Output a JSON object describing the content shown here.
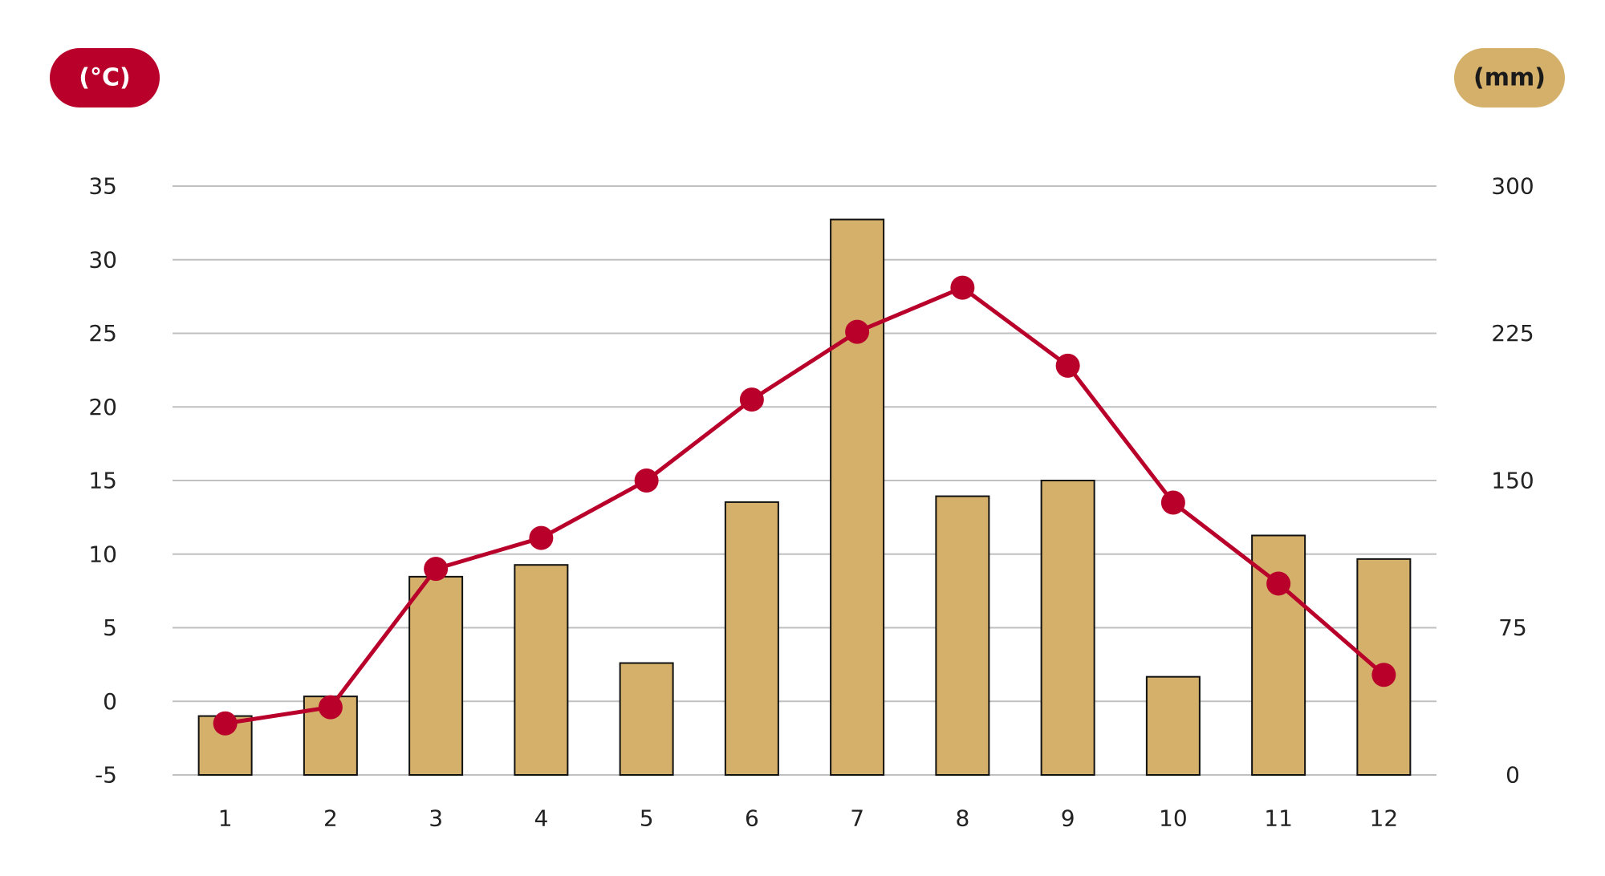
{
  "colors": {
    "temperature": "#B8002B",
    "precipitation": "#D4B06A",
    "bar_outline": "#111111",
    "grid": "#C0C0C0",
    "tick_text": "#222222",
    "background": "#FFFFFF",
    "unit_left_text": "#FFFFFF",
    "unit_right_text": "#1A1A1A"
  },
  "units": {
    "left": "(°C)",
    "right": "(mm)"
  },
  "chart_data": {
    "type": "bar",
    "combo": "bar + line, dual y-axis",
    "categories": [
      "1",
      "2",
      "3",
      "4",
      "5",
      "6",
      "7",
      "8",
      "9",
      "10",
      "11",
      "12"
    ],
    "series": [
      {
        "chart_type": "line",
        "axis": "left",
        "color": "#B8002B",
        "values": [
          -1.5,
          -0.4,
          9.0,
          11.1,
          15.0,
          20.5,
          25.1,
          28.1,
          22.8,
          13.5,
          8.0,
          1.8
        ]
      },
      {
        "chart_type": "bar",
        "axis": "right",
        "color": "#D4B06A",
        "values": [
          30,
          40,
          101,
          107,
          57,
          139,
          283,
          142,
          150,
          50,
          122,
          110
        ]
      }
    ],
    "y_left": {
      "unit": "(°C)",
      "ylim": [
        -5,
        35
      ],
      "ticks": [
        "-5",
        "0",
        "5",
        "10",
        "15",
        "20",
        "25",
        "30",
        "35"
      ]
    },
    "y_right": {
      "unit": "(mm)",
      "ylim": [
        0,
        300
      ],
      "ticks": [
        "0",
        "75",
        "150",
        "225",
        "300"
      ]
    },
    "grid": true,
    "legend": "none"
  }
}
